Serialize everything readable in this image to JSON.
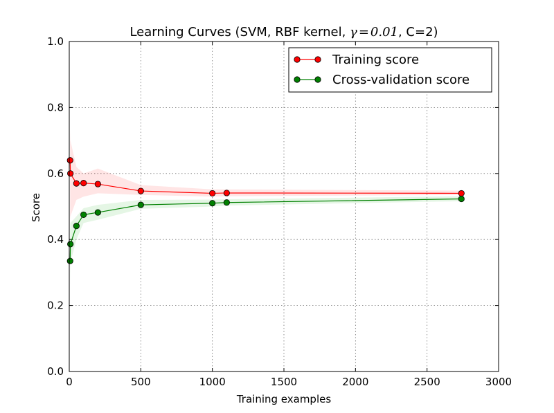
{
  "chart_data": {
    "type": "line",
    "title": "Learning Curves (SVM, RBF kernel, γ = 0.01, C=2)",
    "title_parts": {
      "before": "Learning Curves (SVM, RBF kernel, ",
      "gamma": "γ",
      "eq": "=",
      "val": "0.01",
      "after": ", C=2)"
    },
    "xlabel": "Training examples",
    "ylabel": "Score",
    "xlim": [
      0,
      3000
    ],
    "ylim": [
      0.0,
      1.0
    ],
    "xticks": [
      "0",
      "500",
      "1000",
      "1500",
      "2000",
      "2500",
      "3000"
    ],
    "yticks": [
      "0.0",
      "0.2",
      "0.4",
      "0.6",
      "0.8",
      "1.0"
    ],
    "grid": true,
    "legend_position": "top-right",
    "x": [
      6,
      8,
      50,
      100,
      200,
      500,
      1000,
      1100,
      2740
    ],
    "series": [
      {
        "name": "Training score",
        "color": "#ff0000",
        "band_color": "#ff0000",
        "values": [
          0.64,
          0.6,
          0.57,
          0.571,
          0.568,
          0.547,
          0.54,
          0.541,
          0.54
        ],
        "band_low": [
          0.46,
          0.47,
          0.52,
          0.53,
          0.54,
          0.535,
          0.53,
          0.531,
          0.535
        ],
        "band_high": [
          0.73,
          0.7,
          0.62,
          0.6,
          0.615,
          0.565,
          0.552,
          0.552,
          0.548
        ]
      },
      {
        "name": "Cross-validation score",
        "color": "#008000",
        "band_color": "#00aa00",
        "values": [
          0.335,
          0.386,
          0.441,
          0.475,
          0.482,
          0.505,
          0.51,
          0.512,
          0.523
        ],
        "band_low": [
          0.26,
          0.33,
          0.4,
          0.45,
          0.46,
          0.493,
          0.5,
          0.503,
          0.516
        ],
        "band_high": [
          0.43,
          0.45,
          0.47,
          0.495,
          0.505,
          0.52,
          0.521,
          0.522,
          0.531
        ]
      }
    ]
  }
}
